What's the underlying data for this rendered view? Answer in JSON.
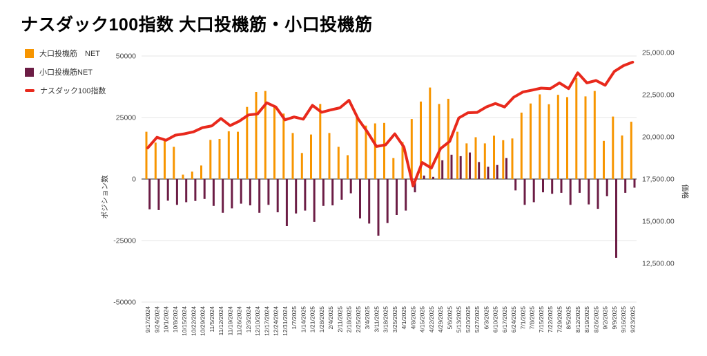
{
  "page": {
    "title": "ナスダック100指数 大口投機筋・小口投機筋"
  },
  "legend": {
    "items": [
      {
        "label": "大口投機筋　NET",
        "swatch": "square"
      },
      {
        "label": "小口投機筋NET",
        "swatch": "square"
      },
      {
        "label": "ナスダック100指数",
        "swatch": "line"
      }
    ]
  },
  "chart_data": {
    "type": "combo_bar_line",
    "title": "ナスダック100指数 大口投機筋・小口投機筋",
    "legend_position": "left-top",
    "grid": true,
    "categories": [
      "9/17/2024",
      "9/24/2024",
      "10/1/2024",
      "10/8/2024",
      "10/15/2024",
      "10/22/2024",
      "10/29/2024",
      "11/5/2024",
      "11/12/2024",
      "11/19/2024",
      "11/26/2024",
      "12/3/2024",
      "12/10/2024",
      "12/17/2024",
      "12/24/2024",
      "12/31/2024",
      "1/7/2025",
      "1/14/2025",
      "1/21/2025",
      "1/28/2025",
      "2/4/2025",
      "2/11/2025",
      "2/18/2025",
      "2/25/2025",
      "3/4/2025",
      "3/11/2025",
      "3/18/2025",
      "3/25/2025",
      "4/1/2025",
      "4/8/2025",
      "4/15/2025",
      "4/22/2025",
      "4/29/2025",
      "5/6/2025",
      "5/13/2025",
      "5/20/2025",
      "5/27/2025",
      "6/3/2025",
      "6/10/2025",
      "6/17/2025",
      "6/24/2025",
      "7/1/2025",
      "7/8/2025",
      "7/15/2025",
      "7/22/2025",
      "7/29/2025",
      "8/5/2025",
      "8/12/2025",
      "8/19/2025",
      "8/26/2025",
      "9/2/2025",
      "9/9/2025",
      "9/16/2025",
      "9/23/2025"
    ],
    "series": [
      {
        "name": "大口投機筋 NET",
        "type": "bar",
        "axis": "left",
        "color": "#F79500",
        "values": [
          19200,
          14800,
          16400,
          13100,
          1800,
          3000,
          5500,
          15900,
          16300,
          19400,
          19200,
          29300,
          35400,
          35800,
          29800,
          26600,
          18700,
          10600,
          18100,
          30500,
          18700,
          13100,
          9700,
          25200,
          21700,
          22600,
          22800,
          8500,
          15000,
          24400,
          31500,
          37200,
          30500,
          32600,
          19200,
          14500,
          17000,
          14500,
          17600,
          15800,
          16500,
          27000,
          30700,
          34400,
          30400,
          34200,
          33300,
          41000,
          33600,
          35800,
          15500,
          25400,
          17700,
          23300
        ]
      },
      {
        "name": "小口投機筋NET",
        "type": "bar",
        "axis": "left",
        "color": "#6C1D45",
        "values": [
          -12300,
          -12600,
          -8800,
          -10500,
          -9400,
          -8900,
          -8100,
          -10900,
          -13700,
          -11900,
          -10000,
          -10700,
          -13700,
          -10500,
          -13500,
          -19100,
          -14000,
          -12800,
          -17400,
          -10900,
          -10700,
          -8400,
          -5800,
          -16000,
          -18100,
          -23000,
          -17900,
          -14600,
          -12800,
          -5400,
          1400,
          900,
          7600,
          9900,
          9300,
          10800,
          6900,
          5000,
          5700,
          8500,
          -4600,
          -10500,
          -9400,
          -5400,
          -6000,
          -5600,
          -10500,
          -5600,
          -10300,
          -12100,
          -7000,
          -32000,
          -5600,
          -3500
        ]
      },
      {
        "name": "ナスダック100指数",
        "type": "line",
        "axis": "right",
        "color": "#E8291C",
        "values": [
          19350,
          19970,
          19800,
          20100,
          20180,
          20300,
          20550,
          20650,
          21090,
          20670,
          20930,
          21300,
          21360,
          22020,
          21770,
          21010,
          21180,
          21050,
          21870,
          21460,
          21600,
          21720,
          22170,
          21060,
          20300,
          19430,
          19530,
          20180,
          19400,
          17090,
          18480,
          18150,
          19300,
          19730,
          21120,
          21430,
          21450,
          21770,
          21980,
          21770,
          22350,
          22660,
          22770,
          22890,
          22860,
          23200,
          22860,
          23800,
          23200,
          23340,
          23060,
          23880,
          24220,
          24430
        ]
      }
    ],
    "left_axis": {
      "title": "ポジション数",
      "min": -50000,
      "max": 50000,
      "tick_values": [
        50000,
        25000,
        0,
        -25000,
        -50000
      ],
      "tick_labels": [
        "50000",
        "25000",
        "0",
        "-25000",
        "-50000"
      ]
    },
    "right_axis": {
      "title": "価格",
      "tick_values": [
        25000,
        22500,
        20000,
        17500,
        15000,
        12500
      ],
      "tick_labels": [
        "25,000.00",
        "22,500.00",
        "20,000.00",
        "17,500.00",
        "15,000.00",
        "12,500.00"
      ],
      "value_at_left_zero": 17500
    },
    "colors": {
      "grid": "#E4E4E4",
      "zero_line": "#6E6E6E",
      "tick_text": "#444444",
      "date_text": "#333333",
      "axis_title_text": "#333333"
    }
  }
}
